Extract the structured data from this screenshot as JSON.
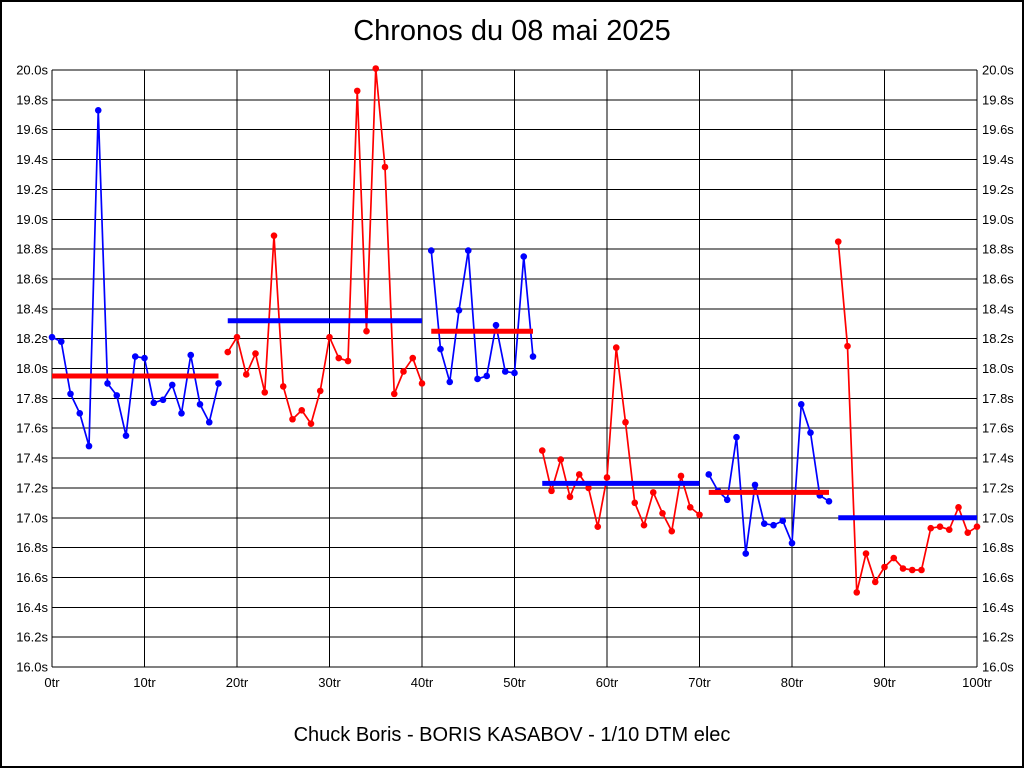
{
  "title": "Chronos du 08 mai 2025",
  "caption": "Chuck Boris - BORIS KASABOV - 1/10 DTM elec",
  "chart_data": {
    "type": "line",
    "title": "Chronos du 08 mai 2025",
    "x_unit_suffix": "tr",
    "y_unit_suffix": "s",
    "xlim": [
      0,
      100
    ],
    "ylim": [
      16.0,
      20.0
    ],
    "grid": true,
    "legend": "none",
    "x_ticks": [
      0,
      10,
      20,
      30,
      40,
      50,
      60,
      70,
      80,
      90,
      100
    ],
    "x_tick_labels": [
      "0tr",
      "10tr",
      "20tr",
      "30tr",
      "40tr",
      "50tr",
      "60tr",
      "70tr",
      "80tr",
      "90tr",
      "100tr"
    ],
    "y_ticks": [
      20.0,
      19.8,
      19.6,
      19.4,
      19.2,
      19.0,
      18.8,
      18.6,
      18.4,
      18.2,
      18.0,
      17.8,
      17.6,
      17.4,
      17.2,
      17.0,
      16.8,
      16.6,
      16.4,
      16.2,
      16.0
    ],
    "y_tick_labels": [
      "20.0s",
      "19.8s",
      "19.6s",
      "19.4s",
      "19.2s",
      "19.0s",
      "18.8s",
      "18.6s",
      "18.4s",
      "18.2s",
      "18.0s",
      "17.8s",
      "17.6s",
      "17.4s",
      "17.2s",
      "17.0s",
      "16.8s",
      "16.6s",
      "16.4s",
      "16.2s",
      "16.0s"
    ],
    "series_colors": {
      "blue": "#0000ff",
      "red": "#ff0000"
    },
    "stints": [
      {
        "name": "stint-1",
        "color": "blue",
        "avg_line_color": "red",
        "start_lap": 0,
        "avg_line": 17.95,
        "lap_times": [
          18.21,
          18.18,
          17.83,
          17.7,
          17.48,
          19.73,
          17.9,
          17.82,
          17.55,
          18.08,
          18.07,
          17.77,
          17.79,
          17.89,
          17.7,
          18.09,
          17.76,
          17.64,
          17.9
        ]
      },
      {
        "name": "stint-2",
        "color": "red",
        "avg_line_color": "blue",
        "start_lap": 19,
        "avg_line": 18.32,
        "lap_times": [
          18.11,
          18.21,
          17.96,
          18.1,
          17.84,
          18.89,
          17.88,
          17.66,
          17.72,
          17.63,
          17.85,
          18.21,
          18.07,
          18.05,
          19.86,
          18.25,
          20.01,
          19.35,
          17.83,
          17.98,
          18.07,
          17.9
        ]
      },
      {
        "name": "stint-3",
        "color": "blue",
        "avg_line_color": "red",
        "start_lap": 41,
        "avg_line": 18.25,
        "lap_times": [
          18.79,
          18.13,
          17.91,
          18.39,
          18.79,
          17.93,
          17.95,
          18.29,
          17.98,
          17.97,
          18.75,
          18.08
        ]
      },
      {
        "name": "stint-4",
        "color": "red",
        "avg_line_color": "blue",
        "start_lap": 53,
        "avg_line": 17.23,
        "lap_times": [
          17.45,
          17.18,
          17.39,
          17.14,
          17.29,
          17.2,
          16.94,
          17.27,
          18.14,
          17.64,
          17.1,
          16.95,
          17.17,
          17.03,
          16.91,
          17.28,
          17.07,
          17.02
        ]
      },
      {
        "name": "stint-5",
        "color": "blue",
        "avg_line_color": "red",
        "start_lap": 71,
        "avg_line": 17.17,
        "lap_times": [
          17.29,
          17.18,
          17.12,
          17.54,
          16.76,
          17.22,
          16.96,
          16.95,
          16.98,
          16.83,
          17.76,
          17.57,
          17.15,
          17.11
        ]
      },
      {
        "name": "stint-6",
        "color": "red",
        "avg_line_color": "blue",
        "start_lap": 85,
        "avg_line": 17.0,
        "lap_times": [
          18.85,
          18.15,
          16.5,
          16.76,
          16.57,
          16.67,
          16.73,
          16.66,
          16.65,
          16.65,
          16.93,
          16.94,
          16.92,
          17.07,
          16.9,
          16.94
        ]
      }
    ]
  }
}
